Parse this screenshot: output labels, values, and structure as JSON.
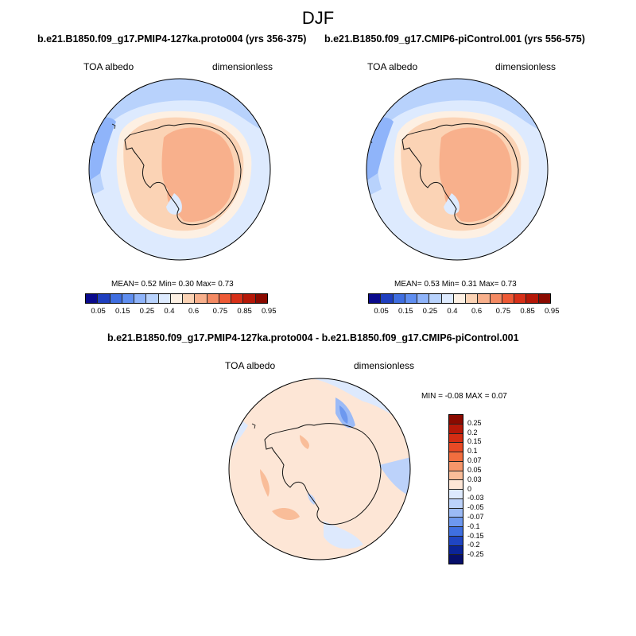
{
  "figure": {
    "season": "DJF",
    "panel1": {
      "title": "b.e21.B1850.f09_g17.PMIP4-127ka.proto004 (yrs 356-375)",
      "variable": "TOA albedo",
      "units": "dimensionless",
      "stats": "MEAN=  0.52  Min=   0.30  Max=   0.73"
    },
    "panel2": {
      "title": "b.e21.B1850.f09_g17.CMIP6-piControl.001 (yrs 556-575)",
      "variable": "TOA albedo",
      "units": "dimensionless",
      "stats": "MEAN=  0.53  Min=   0.31  Max=   0.73"
    },
    "panel3": {
      "title": "b.e21.B1850.f09_g17.PMIP4-127ka.proto004 - b.e21.B1850.f09_g17.CMIP6-piControl.001",
      "variable": "TOA albedo",
      "units": "dimensionless",
      "stats": "MIN =  -0.08 MAX =   0.07"
    },
    "colorbar_abs": {
      "ticks": [
        "0.05",
        "0.15",
        "0.25",
        "0.4",
        "0.6",
        "0.75",
        "0.85",
        "0.95"
      ],
      "colors": [
        "#0a0a8c",
        "#1f3fbf",
        "#3f6ee0",
        "#5f8ef0",
        "#8fb4fa",
        "#b8d2fc",
        "#ddeafe",
        "#fdf0e3",
        "#fbd3b5",
        "#f8b08c",
        "#f48a63",
        "#ee5a36",
        "#d73018",
        "#b51808",
        "#8a0a00"
      ]
    },
    "colorbar_diff": {
      "ticks": [
        "0.25",
        "0.2",
        "0.15",
        "0.1",
        "0.07",
        "0.05",
        "0.03",
        "0",
        "-0.03",
        "-0.05",
        "-0.07",
        "-0.1",
        "-0.15",
        "-0.2",
        "-0.25"
      ],
      "colors": [
        "#8a0a00",
        "#b51808",
        "#d32d13",
        "#e84a25",
        "#f26e3f",
        "#f6966a",
        "#f9bd99",
        "#fde6d6",
        "#dde9fd",
        "#bcd2fa",
        "#9bbaf6",
        "#6d98ef",
        "#3f6fe0",
        "#1f45c2",
        "#0b2497",
        "#070f6a"
      ]
    }
  }
}
